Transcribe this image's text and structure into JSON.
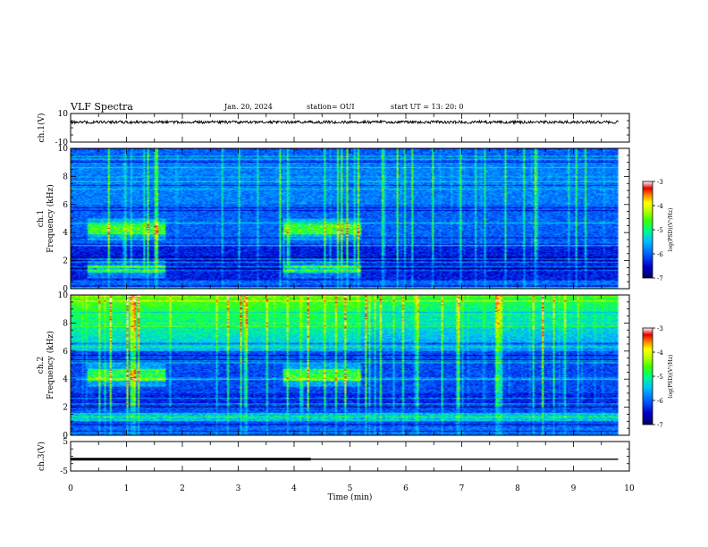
{
  "header": {
    "title": "VLF Spectra",
    "date": "Jan. 20, 2024",
    "station": "station= OUI",
    "start": "start  UT =   13: 20: 0"
  },
  "chart_data": [
    {
      "id": "ch1-waveform",
      "type": "line",
      "ylabel": "ch.1(V)",
      "ylim": [
        -10,
        10
      ],
      "yticks": [
        -10,
        10
      ],
      "xlim": [
        0,
        10
      ],
      "series": [
        {
          "x": [
            0,
            9.8
          ],
          "values": [
            4,
            4
          ],
          "noise_amplitude": 1
        }
      ]
    },
    {
      "id": "ch1-spectrogram",
      "type": "heatmap",
      "ylabel_top": "ch.1",
      "ylabel": "Frequency  (kHz)",
      "ylim": [
        0,
        10
      ],
      "yticks": [
        0,
        2,
        4,
        6,
        8,
        10
      ],
      "xlim": [
        0,
        10
      ],
      "data_extent_x": [
        0,
        9.8
      ],
      "colorbar": {
        "label": "log(PSD)(V²/Hz)",
        "range": [
          -7,
          -3
        ],
        "ticks": [
          "-3",
          "-4",
          "-5",
          "-6",
          "-7"
        ]
      },
      "emission_bands": [
        {
          "t_start": 0.3,
          "t_end": 1.7,
          "f_low": 3.9,
          "f_high": 4.6
        },
        {
          "t_start": 3.8,
          "t_end": 5.2,
          "f_low": 3.9,
          "f_high": 4.6
        },
        {
          "t_start": 0.3,
          "t_end": 1.7,
          "f_low": 1.1,
          "f_high": 1.7
        },
        {
          "t_start": 3.8,
          "t_end": 5.2,
          "f_low": 1.1,
          "f_high": 1.7
        }
      ]
    },
    {
      "id": "ch2-spectrogram",
      "type": "heatmap",
      "ylabel_top": "ch.2",
      "ylabel": "Frequency  (kHz)",
      "ylim": [
        0,
        10
      ],
      "yticks": [
        0,
        2,
        4,
        6,
        8,
        10
      ],
      "xlim": [
        0,
        10
      ],
      "data_extent_x": [
        0,
        9.8
      ],
      "colorbar": {
        "label": "log(PSD)(V²/Hz)",
        "range": [
          -7,
          -3
        ],
        "ticks": [
          "-3",
          "-4",
          "-5",
          "-6",
          "-7"
        ]
      },
      "emission_bands": [
        {
          "t_start": 0.3,
          "t_end": 1.7,
          "f_low": 3.9,
          "f_high": 4.7
        },
        {
          "t_start": 3.8,
          "t_end": 5.2,
          "f_low": 3.9,
          "f_high": 4.7
        },
        {
          "t_start": 0.0,
          "t_end": 9.8,
          "f_low": 1.0,
          "f_high": 1.6
        }
      ]
    },
    {
      "id": "ch3-waveform",
      "type": "line",
      "ylabel": "ch.3(V)",
      "ylim": [
        -5,
        5
      ],
      "yticks": [
        -5,
        5
      ],
      "xlim": [
        0,
        10
      ],
      "xlabel": "Time  (min)",
      "xticks": [
        0,
        1,
        2,
        3,
        4,
        5,
        6,
        7,
        8,
        9,
        10
      ],
      "series": [
        {
          "x": [
            0,
            4.3
          ],
          "values": [
            -1,
            -1
          ],
          "thickness": "thick"
        },
        {
          "x": [
            4.3,
            9.8
          ],
          "values": [
            -1,
            -1
          ],
          "thickness": "thin"
        }
      ]
    }
  ],
  "colors": {
    "background": "#ffffff",
    "axis": "#000000",
    "colormap": [
      "#000060",
      "#0000cc",
      "#0060ff",
      "#00c0ff",
      "#00ffc0",
      "#00ff40",
      "#80ff00",
      "#ffff00",
      "#ffa000",
      "#ff2000",
      "#c00000",
      "#ffffff"
    ]
  }
}
